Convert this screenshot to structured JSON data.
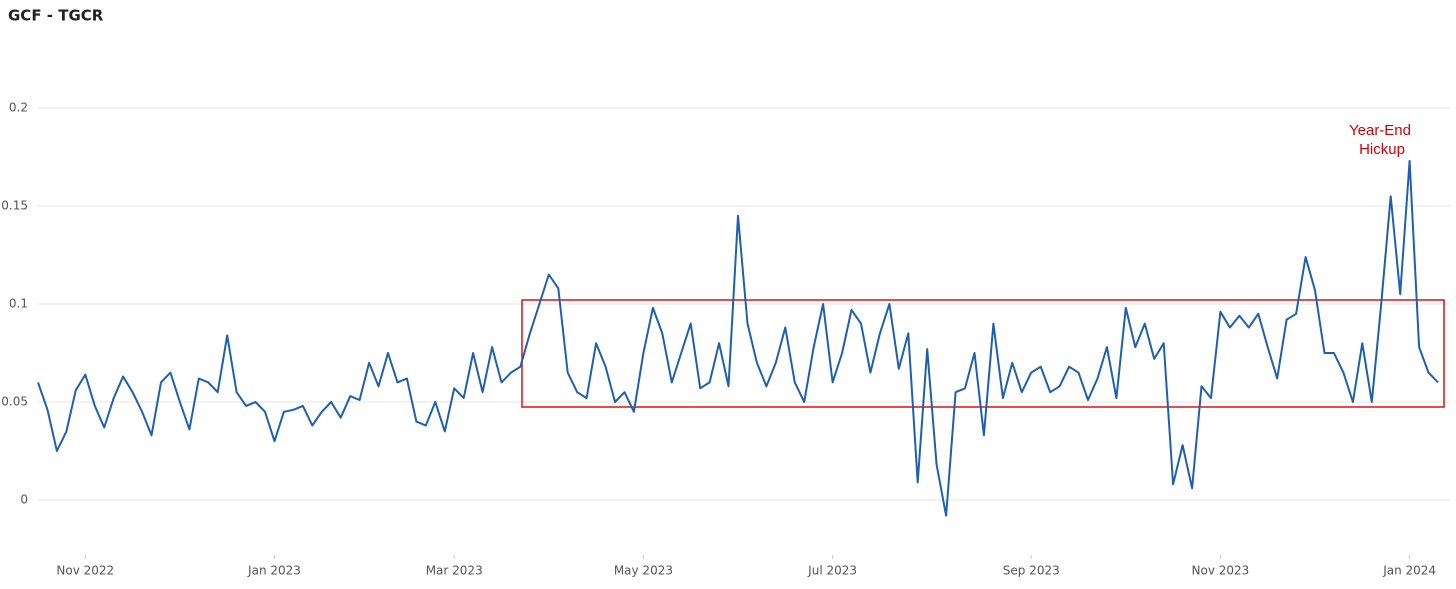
{
  "chart_data": {
    "type": "line",
    "title": "GCF - TGCR",
    "annotation": [
      "Year-End",
      "Hickup"
    ],
    "color": "#1f5fb0",
    "grid": true,
    "xlim": [
      0,
      148
    ],
    "xticks": [
      {
        "value": 5,
        "label": "Nov 2022"
      },
      {
        "value": 25,
        "label": "Jan 2023"
      },
      {
        "value": 44,
        "label": "Mar 2023"
      },
      {
        "value": 64,
        "label": "May 2023"
      },
      {
        "value": 84,
        "label": "Jul 2023"
      },
      {
        "value": 105,
        "label": "Sep 2023"
      },
      {
        "value": 125,
        "label": "Nov 2023"
      },
      {
        "value": 145,
        "label": "Jan 2024"
      }
    ],
    "ylim": [
      -0.02,
      0.23
    ],
    "yticks": [
      0,
      0.05,
      0.1,
      0.15,
      0.2
    ],
    "values": [
      0.06,
      0.046,
      0.025,
      0.035,
      0.056,
      0.064,
      0.048,
      0.037,
      0.052,
      0.063,
      0.055,
      0.045,
      0.033,
      0.06,
      0.065,
      0.05,
      0.036,
      0.062,
      0.06,
      0.055,
      0.084,
      0.055,
      0.048,
      0.05,
      0.045,
      0.03,
      0.045,
      0.046,
      0.048,
      0.038,
      0.045,
      0.05,
      0.042,
      0.053,
      0.051,
      0.07,
      0.058,
      0.075,
      0.06,
      0.062,
      0.04,
      0.038,
      0.05,
      0.035,
      0.057,
      0.052,
      0.075,
      0.055,
      0.078,
      0.06,
      0.065,
      0.068,
      0.085,
      0.1,
      0.115,
      0.108,
      0.065,
      0.055,
      0.052,
      0.08,
      0.068,
      0.05,
      0.055,
      0.045,
      0.075,
      0.098,
      0.085,
      0.06,
      0.075,
      0.09,
      0.057,
      0.06,
      0.08,
      0.058,
      0.145,
      0.09,
      0.07,
      0.058,
      0.07,
      0.088,
      0.06,
      0.05,
      0.078,
      0.1,
      0.06,
      0.075,
      0.097,
      0.09,
      0.065,
      0.085,
      0.1,
      0.067,
      0.085,
      0.009,
      0.077,
      0.018,
      -0.008,
      0.055,
      0.057,
      0.075,
      0.033,
      0.09,
      0.052,
      0.07,
      0.055,
      0.065,
      0.068,
      0.055,
      0.058,
      0.068,
      0.065,
      0.051,
      0.062,
      0.078,
      0.052,
      0.098,
      0.078,
      0.09,
      0.072,
      0.08,
      0.008,
      0.028,
      0.006,
      0.058,
      0.052,
      0.096,
      0.088,
      0.094,
      0.088,
      0.095,
      0.078,
      0.062,
      0.092,
      0.095,
      0.124,
      0.107,
      0.075,
      0.075,
      0.065,
      0.05,
      0.08,
      0.05,
      0.1,
      0.155,
      0.105,
      0.173,
      0.078,
      0.065,
      0.06
    ]
  }
}
